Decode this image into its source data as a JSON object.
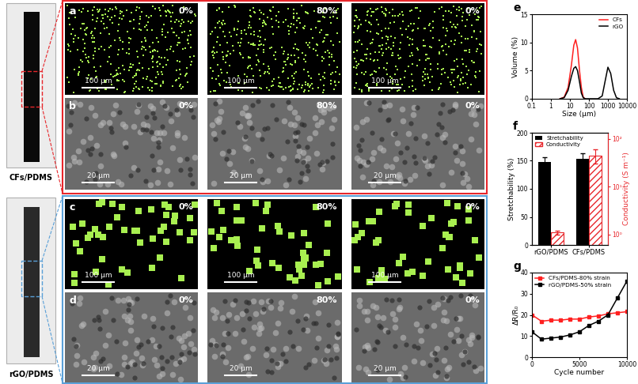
{
  "photos": [
    {
      "label": "CFs/PDMS",
      "color": "#e8262b"
    },
    {
      "label": "rGO/PDMS",
      "color": "#5aa0d8"
    }
  ],
  "micrographs": [
    {
      "letter": "a",
      "sample": "CFs/PDMS",
      "type": "fluorescence",
      "strains": [
        "0%",
        "80%",
        "0%"
      ],
      "scale_bar": "100 μm"
    },
    {
      "letter": "b",
      "sample": "CFs/PDMS",
      "type": "SEM",
      "strains": [
        "0%",
        "80%",
        "0%"
      ],
      "scale_bar": "20 μm"
    },
    {
      "letter": "c",
      "sample": "rGO/PDMS",
      "type": "fluorescence",
      "strains": [
        "0%",
        "80%",
        "0%"
      ],
      "scale_bar": "100 μm"
    },
    {
      "letter": "d",
      "sample": "rGO/PDMS",
      "type": "SEM",
      "strains": [
        "0%",
        "80%",
        "0%"
      ],
      "scale_bar": "20 μm"
    }
  ],
  "chart_data": [
    {
      "letter": "e",
      "type": "line",
      "log": "x",
      "x_label": "Size (μm)",
      "y_label": "Volume (%)",
      "xlim": [
        0.1,
        10000
      ],
      "xticks": [
        0.1,
        1,
        10,
        100,
        1000,
        10000
      ],
      "ylim": [
        0,
        15
      ],
      "yticks": [
        0,
        5,
        10,
        15
      ],
      "legend": "upper right",
      "series": [
        {
          "name": "CFs",
          "color": "#ff2020",
          "x": [
            3,
            5,
            8,
            12,
            16,
            20,
            25,
            32,
            40,
            50,
            63
          ],
          "values": [
            0,
            0.3,
            2,
            6,
            9.5,
            10.5,
            9,
            5,
            2,
            0.3,
            0
          ]
        },
        {
          "name": "rGO",
          "color": "#000000",
          "x": [
            3,
            5,
            8,
            12,
            16,
            20,
            25,
            32,
            40,
            50,
            63,
            100,
            300,
            500,
            700,
            1000,
            1400,
            2000,
            2800,
            4000
          ],
          "values": [
            0,
            0.2,
            1.5,
            4,
            5.4,
            5.7,
            5,
            3,
            1,
            0.2,
            0,
            0,
            0,
            0.5,
            3,
            5.6,
            4.5,
            1.5,
            0.2,
            0
          ]
        }
      ]
    },
    {
      "letter": "f",
      "type": "bar",
      "categories": [
        "rGO/PDMS",
        "CFs/PDMS"
      ],
      "y_label": "Stretchability (%)",
      "y2_label": "Conductivity (S m⁻¹)",
      "ylim": [
        0,
        200
      ],
      "yticks": [
        0,
        50,
        100,
        150,
        200
      ],
      "log": "y2",
      "y2lim": [
        0.6,
        135
      ],
      "y2ticks": [
        {
          "value": 1,
          "label": "10⁰"
        },
        {
          "value": 10,
          "label": "10¹"
        },
        {
          "value": 100,
          "label": "10²"
        }
      ],
      "legend": "upper left",
      "series": [
        {
          "name": "Stretchability",
          "color": "#000000",
          "values": [
            148,
            153
          ],
          "errors": [
            8,
            10
          ]
        },
        {
          "name": "Conductivity",
          "color": "#e8262b",
          "axis": "y2",
          "values": [
            1.1,
            45
          ],
          "errors": [
            0.1,
            15
          ]
        }
      ]
    },
    {
      "letter": "g",
      "type": "line",
      "x_label": "Cycle number",
      "y_label": "ΔR/R₀",
      "xlim": [
        0,
        10000
      ],
      "xticks": [
        0,
        5000,
        10000
      ],
      "ylim": [
        0,
        40
      ],
      "yticks": [
        0,
        10,
        20,
        30,
        40
      ],
      "legend": "upper left",
      "x": [
        0,
        1000,
        2000,
        3000,
        4000,
        5000,
        6000,
        7000,
        8000,
        9000,
        10000
      ],
      "series": [
        {
          "name": "CFs/PDMS-80% strain",
          "color": "#ff2020",
          "marker": "square",
          "values": [
            20,
            17,
            17.5,
            17.5,
            18,
            18,
            19,
            19.5,
            20.5,
            21,
            21.5
          ]
        },
        {
          "name": "rGO/PDMS-50% strain",
          "color": "#000000",
          "marker": "square",
          "values": [
            12,
            8.5,
            9,
            9.5,
            10.5,
            12,
            15,
            17,
            20,
            28,
            36
          ]
        }
      ]
    }
  ]
}
